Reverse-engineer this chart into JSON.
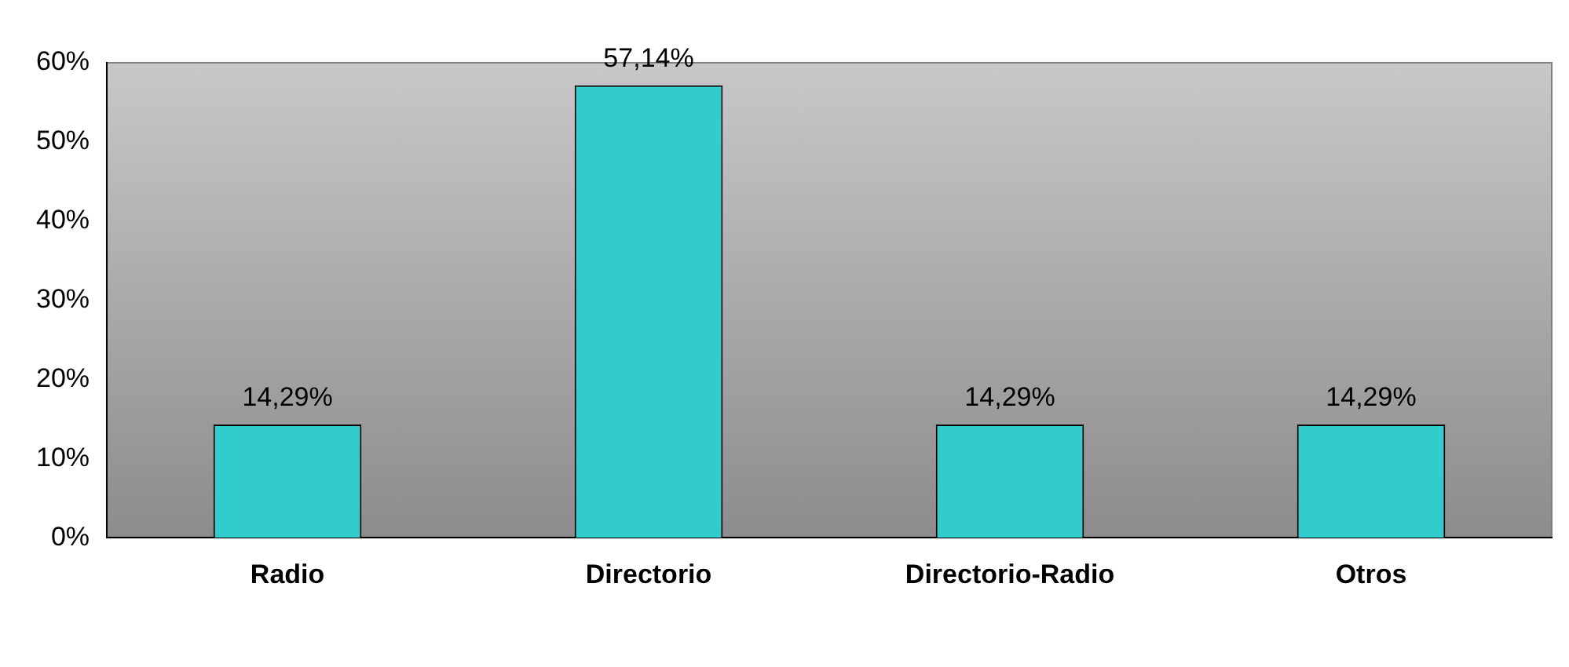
{
  "chart_data": {
    "type": "bar",
    "categories": [
      "Radio",
      "Directorio",
      "Directorio-Radio",
      "Otros"
    ],
    "values": [
      14.29,
      57.14,
      14.29,
      14.29
    ],
    "value_labels": [
      "14,29%",
      "57,14%",
      "14,29%",
      "14,29%"
    ],
    "color": "#33cccc",
    "ylim": [
      0,
      60
    ],
    "yticks": [
      {
        "value": 0,
        "label": "0%"
      },
      {
        "value": 10,
        "label": "10%"
      },
      {
        "value": 20,
        "label": "20%"
      },
      {
        "value": 30,
        "label": "30%"
      },
      {
        "value": 40,
        "label": "40%"
      },
      {
        "value": 50,
        "label": "50%"
      },
      {
        "value": 60,
        "label": "60%"
      }
    ],
    "grid": false,
    "legend": false
  }
}
